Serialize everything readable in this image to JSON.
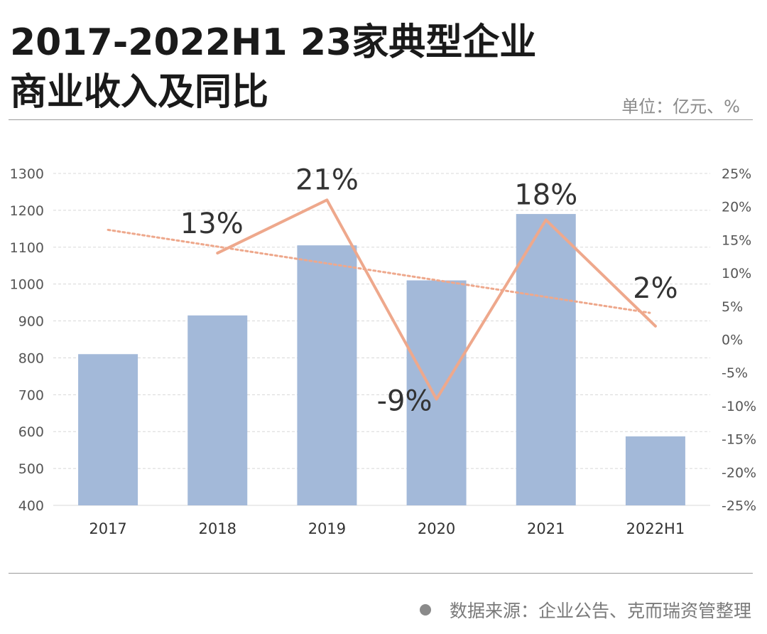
{
  "header": {
    "title_line1": "2017-2022H1 23家典型企业",
    "title_line2": "商业收入及同比",
    "unit": "单位：亿元、%"
  },
  "footer": {
    "source": "数据来源：企业公告、克而瑞资管整理"
  },
  "colors": {
    "bar": "#a3b9d9",
    "line": "#eea88c",
    "trend": "#eea88c",
    "grid": "#d8d8d8"
  },
  "chart_data": {
    "type": "bar",
    "categories": [
      "2017",
      "2018",
      "2019",
      "2020",
      "2021",
      "2022H1"
    ],
    "series": [
      {
        "type": "bar",
        "axis": "left",
        "values": [
          810,
          915,
          1105,
          1010,
          1190,
          587
        ]
      },
      {
        "type": "line",
        "axis": "right",
        "values": [
          null,
          13,
          21,
          -9,
          18,
          2
        ],
        "labels": [
          "",
          "13%",
          "21%",
          "-9%",
          "18%",
          "2%"
        ]
      },
      {
        "type": "trendline",
        "axis": "right",
        "style": "dotted",
        "values": [
          16.5,
          14.0,
          11.5,
          9.0,
          6.5,
          4.0
        ]
      }
    ],
    "left_axis": {
      "ylim": [
        400,
        1300
      ],
      "ticks": [
        "400",
        "500",
        "600",
        "700",
        "800",
        "900",
        "1000",
        "1100",
        "1200",
        "1300"
      ]
    },
    "right_axis": {
      "ylim": [
        -25,
        25
      ],
      "ticks": [
        "-25%",
        "-20%",
        "-15%",
        "-10%",
        "-5%",
        "0%",
        "5%",
        "10%",
        "15%",
        "20%",
        "25%"
      ]
    },
    "grid": true,
    "legend": "none"
  }
}
